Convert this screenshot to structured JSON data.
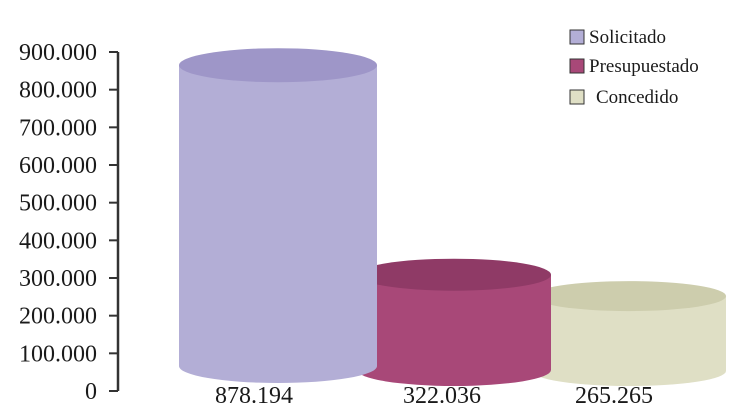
{
  "chart_data": {
    "type": "bar",
    "style": "3d-cylinder",
    "categories": [
      "Solicitado",
      "Presupuestado",
      "Concedido"
    ],
    "values": [
      878194,
      322036,
      265265
    ],
    "value_labels": [
      "878.194",
      "322.036",
      "265.265"
    ],
    "colors": {
      "Solicitado": "#b3aed6",
      "Presupuestado": "#a84878",
      "Concedido": "#dfdfc5"
    },
    "ylim": [
      0,
      900000
    ],
    "yticks": [
      0,
      100000,
      200000,
      300000,
      400000,
      500000,
      600000,
      700000,
      800000,
      900000
    ],
    "ytick_labels": [
      "0",
      "100.000",
      "200.000",
      "300.000",
      "400.000",
      "500.000",
      "600.000",
      "700.000",
      "800.000",
      "900.000"
    ],
    "legend": {
      "position": "top-right",
      "entries": [
        "Solicitado",
        "Presupuestado",
        "Concedido"
      ]
    },
    "title": "",
    "xlabel": "",
    "ylabel": "",
    "grid": false
  }
}
